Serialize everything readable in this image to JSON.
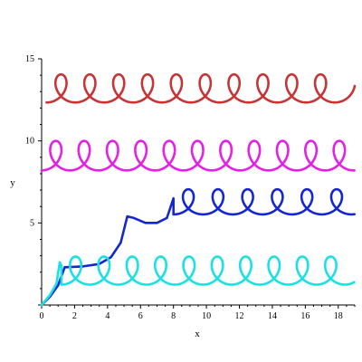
{
  "chart_data": {
    "type": "line",
    "title": "",
    "xlabel": "x",
    "ylabel": "y",
    "xlim": [
      0,
      19
    ],
    "ylim": [
      0,
      15
    ],
    "grid": false,
    "legend": "none",
    "x_ticks": [
      0,
      2,
      4,
      6,
      8,
      10,
      12,
      14,
      16,
      18
    ],
    "y_ticks": [
      5,
      10,
      15
    ],
    "series": [
      {
        "color": "#c83434",
        "kind": "trochoid",
        "x_start": 0.3,
        "x_end": 19.0,
        "baseline_y": 13.1,
        "loop_radius_x": 0.45,
        "loop_radius_y": 0.95,
        "loop_spacing": 1.75,
        "loops": 11
      },
      {
        "color": "#e520e5",
        "kind": "trochoid",
        "x_start": 0.0,
        "x_end": 19.0,
        "baseline_y": 9.0,
        "loop_radius_x": 0.45,
        "loop_radius_y": 1.0,
        "loop_spacing": 1.72,
        "loops": 11
      },
      {
        "color": "#1426d2",
        "kind": "composite",
        "points": [
          [
            0.0,
            0.0
          ],
          [
            0.5,
            0.5
          ],
          [
            1.0,
            1.2
          ],
          [
            1.4,
            2.3
          ],
          [
            2.5,
            2.35
          ],
          [
            3.5,
            2.5
          ],
          [
            4.2,
            2.9
          ],
          [
            4.8,
            3.8
          ],
          [
            5.2,
            5.4
          ],
          [
            5.6,
            5.3
          ],
          [
            6.3,
            5.0
          ],
          [
            7.0,
            5.0
          ],
          [
            7.6,
            5.3
          ],
          [
            8.0,
            6.5
          ]
        ],
        "trochoid": {
          "x_start": 8.0,
          "x_end": 19.0,
          "baseline_y": 6.2,
          "loop_radius_x": 0.45,
          "loop_radius_y": 0.85,
          "loop_spacing": 1.8,
          "loops": 6
        }
      },
      {
        "color": "#1ae0e6",
        "kind": "composite",
        "points": [
          [
            0.0,
            0.0
          ],
          [
            0.5,
            0.6
          ],
          [
            0.9,
            1.3
          ],
          [
            1.1,
            2.6
          ],
          [
            1.2,
            2.4
          ]
        ],
        "trochoid": {
          "x_start": 1.2,
          "x_end": 19.0,
          "baseline_y": 2.0,
          "loop_radius_x": 0.45,
          "loop_radius_y": 0.95,
          "loop_spacing": 1.72,
          "loops": 10
        }
      }
    ]
  }
}
